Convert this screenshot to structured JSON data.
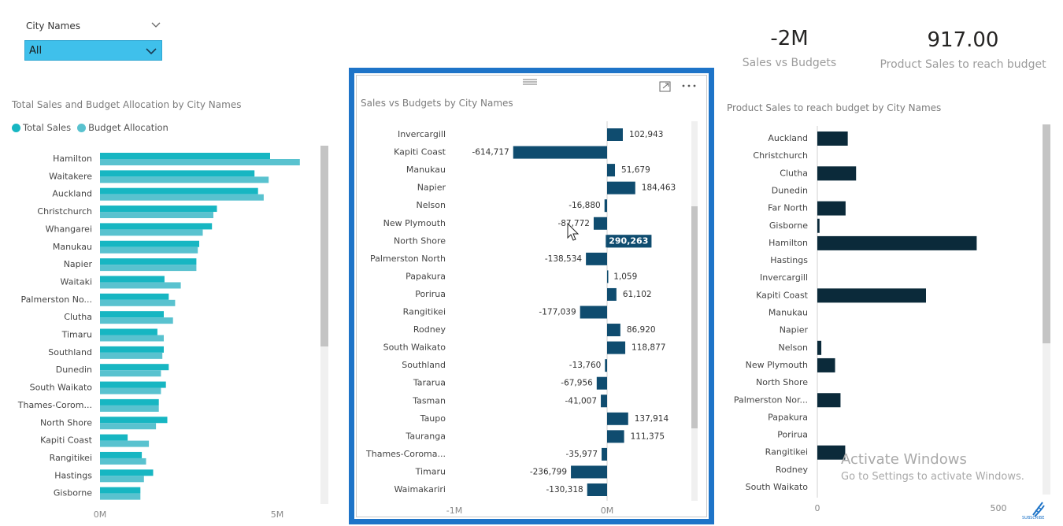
{
  "slicer": {
    "title": "City Names",
    "value": "All",
    "color": "#3fc0eb"
  },
  "kpis": [
    {
      "value": "-2M",
      "label": "Sales vs Budgets"
    },
    {
      "value": "917.00",
      "label": "Product Sales to reach budget"
    }
  ],
  "mid_card": {
    "border_color": "#1e74c8",
    "icons": [
      "drag-handle-icon",
      "focus-mode-icon",
      "more-options-icon"
    ]
  },
  "watermark": {
    "title": "Activate Windows",
    "subtitle": "Go to Settings to activate Windows."
  },
  "subscribe_label": "SUBSCRIBE",
  "chart_data": [
    {
      "type": "bar",
      "orientation": "horizontal",
      "title": "Total Sales and Budget Allocation by City Names",
      "legend_position": "top-left",
      "xlim": [
        0,
        6000000
      ],
      "x_ticks": [
        {
          "value": 0,
          "label": "0M"
        },
        {
          "value": 5000000,
          "label": "5M"
        }
      ],
      "categories": [
        "Hamilton",
        "Waitakere",
        "Auckland",
        "Christchurch",
        "Whangarei",
        "Manukau",
        "Napier",
        "Waitaki",
        "Palmerston No...",
        "Clutha",
        "Timaru",
        "Southland",
        "Dunedin",
        "South Waikato",
        "Thames-Corom...",
        "North Shore",
        "Kapiti Coast",
        "Rangitikei",
        "Hastings",
        "Gisborne"
      ],
      "series": [
        {
          "name": "Total Sales",
          "color": "#17b6c2",
          "values": [
            4800000,
            4360000,
            4460000,
            3300000,
            3160000,
            2800000,
            2720000,
            1820000,
            1940000,
            1800000,
            1620000,
            1800000,
            1940000,
            1860000,
            1660000,
            1900000,
            780000,
            1180000,
            1500000,
            1140000
          ]
        },
        {
          "name": "Budget Allocation",
          "color": "#59c2cf",
          "values": [
            5640000,
            4760000,
            4620000,
            3200000,
            2900000,
            2760000,
            2720000,
            2280000,
            2120000,
            2060000,
            1800000,
            1760000,
            1720000,
            1720000,
            1660000,
            1580000,
            1380000,
            1300000,
            1240000,
            1140000
          ]
        }
      ]
    },
    {
      "type": "bar",
      "orientation": "horizontal",
      "title": "Sales vs Budgets by City Names",
      "xlim": [
        -1000000,
        300000
      ],
      "x_ticks": [
        {
          "value": -1000000,
          "label": "-1M"
        },
        {
          "value": 0,
          "label": "0M"
        }
      ],
      "bar_color": "#0f4c6f",
      "highlighted_category": "North Shore",
      "categories": [
        "Invercargill",
        "Kapiti Coast",
        "Manukau",
        "Napier",
        "Nelson",
        "New Plymouth",
        "North Shore",
        "Palmerston North",
        "Papakura",
        "Porirua",
        "Rangitikei",
        "Rodney",
        "South Waikato",
        "Southland",
        "Tararua",
        "Tasman",
        "Taupo",
        "Tauranga",
        "Thames-Coroma...",
        "Timaru",
        "Waimakariri"
      ],
      "values": [
        102943,
        -614717,
        51679,
        184463,
        -16880,
        -87772,
        290263,
        -138534,
        1059,
        61102,
        -177039,
        86920,
        118877,
        -13760,
        -67956,
        -41007,
        137914,
        111375,
        -35977,
        -236799,
        -130318
      ],
      "data_labels": [
        "102,943",
        "-614,717",
        "51,679",
        "184,463",
        "-16,880",
        "-87,772",
        "290,263",
        "-138,534",
        "1,059",
        "61,102",
        "-177,039",
        "86,920",
        "118,877",
        "-13,760",
        "-67,956",
        "-41,007",
        "137,914",
        "111,375",
        "-35,977",
        "-236,799",
        "-130,318"
      ]
    },
    {
      "type": "bar",
      "orientation": "horizontal",
      "title": "Product Sales to reach budget by City Names",
      "xlim": [
        0,
        620
      ],
      "x_ticks": [
        {
          "value": 0,
          "label": "0"
        },
        {
          "value": 500,
          "label": "500"
        }
      ],
      "bar_color": "#0b2a3a",
      "categories": [
        "Auckland",
        "Christchurch",
        "Clutha",
        "Dunedin",
        "Far North",
        "Gisborne",
        "Hamilton",
        "Hastings",
        "Invercargill",
        "Kapiti Coast",
        "Manukau",
        "Napier",
        "Nelson",
        "New Plymouth",
        "North Shore",
        "Palmerston Nor...",
        "Papakura",
        "Porirua",
        "Rangitikei",
        "Rodney",
        "South Waikato"
      ],
      "values": [
        84,
        0,
        107,
        0,
        78,
        6,
        440,
        0,
        0,
        300,
        0,
        0,
        11,
        49,
        0,
        64,
        0,
        0,
        77,
        0,
        0
      ]
    }
  ]
}
